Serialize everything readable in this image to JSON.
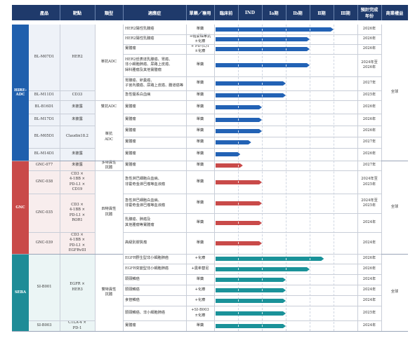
{
  "headers": {
    "product": "產品",
    "target": "靶點",
    "type": "類型",
    "indication": "適應症",
    "regimen": "單藥／聯用",
    "preclinical": "臨床前",
    "ind": "IND",
    "phase1a": "Ⅰa期",
    "phase1b": "Ⅰb期",
    "phase2": "Ⅱ期",
    "phase3": "Ⅲ期",
    "completion": "預計完成年份",
    "rights": "商業權益"
  },
  "groups": [
    {
      "label": "HIRE-ADC",
      "color": "#1f5fad"
    },
    {
      "label": "GNC",
      "color": "#c94a49"
    },
    {
      "label": "SEBA",
      "color": "#1e8c97"
    }
  ],
  "colors": {
    "blue": "#2262b5",
    "red": "#c94a49",
    "teal": "#1a9299",
    "header": "#1f3a6b"
  },
  "products": [
    "BL-M07D1",
    "BL-M11D1",
    "BL-B16D1",
    "BL-M17D1",
    "BL-M05D1",
    "BL-M14D1",
    "GNC-077",
    "GNC-038",
    "GNC-035",
    "GNC-039",
    "SI-B001",
    "SI-B003"
  ],
  "targets": [
    "HER2",
    "CD33",
    "未披露",
    "未披露",
    "Claudin18.2",
    "未披露",
    "未披露",
    "CD3 ×\n4-1BB ×\nPD-L1 ×\nCD19",
    "CD3 ×\n4-1BB ×\nPD-L1 ×\nROR1",
    "CD3 ×\n4-1BB ×\nPD-L1 ×\nEGFRvIII",
    "EGFR ×\nHER3",
    "CTLA-4 ×\nPD-1"
  ],
  "types": [
    "單抗ADC",
    "雙抗ADC",
    "單抗\nADC",
    "多特異性\n抗體",
    "四特異性\n抗體",
    "雙特異性\n抗體"
  ],
  "rights": [
    "全球",
    "全球",
    "全球"
  ],
  "rows": [
    {
      "indication": "HER2陽性乳腺癌",
      "regimen": "單藥",
      "year": "2026年",
      "color": "blue",
      "stage": 5.0
    },
    {
      "indication": "HER2陽性乳腺癌",
      "regimen": "+帕妥珠單抗\n±化療",
      "year": "2026年",
      "color": "blue",
      "stage": 4.0
    },
    {
      "indication": "實體瘤",
      "regimen": "+ PD-(L)1\n±化療",
      "year": "2026年",
      "color": "blue",
      "stage": 4.0
    },
    {
      "indication": "HER2低表達乳腺癌、胃癌、\n非小細胞肺癌、尿路上皮癌、\n婦科腫瘤及其他實體瘤",
      "regimen": "單藥",
      "year": "2024年至\n2026年",
      "color": "blue",
      "stage": 4.0
    },
    {
      "indication": "胃腺癌、卵巢癌、\n子宮內膜癌、尿路上皮癌、膽道癌等",
      "regimen": "單藥",
      "year": "2027年",
      "color": "blue",
      "stage": 3.0
    },
    {
      "indication": "急性髓系白血病",
      "regimen": "單藥",
      "year": "2025年",
      "color": "blue",
      "stage": 3.0
    },
    {
      "indication": "實體瘤",
      "regimen": "單藥",
      "year": "2026年",
      "color": "blue",
      "stage": 2.0
    },
    {
      "indication": "實體瘤",
      "regimen": "單藥",
      "year": "2026年",
      "color": "blue",
      "stage": 2.0
    },
    {
      "indication": "實體瘤",
      "regimen": "單藥",
      "year": "2026年",
      "color": "blue",
      "stage": 2.0
    },
    {
      "indication": "實體瘤",
      "regimen": "單藥",
      "year": "2027年",
      "color": "blue",
      "stage": 1.55
    },
    {
      "indication": "實體瘤",
      "regimen": "單藥",
      "year": "2026年",
      "color": "blue",
      "stage": 1.1
    },
    {
      "indication": "實體瘤",
      "regimen": "單藥",
      "year": "2027年",
      "color": "red",
      "stage": 1.2
    },
    {
      "indication": "急性淋巴細胞白血病、\n非霍奇金淋巴瘤等血液瘤",
      "regimen": "單藥",
      "year": "2024年至\n2025年",
      "color": "red",
      "stage": 2.0
    },
    {
      "indication": "急性淋巴細胞白血病、\n非霍奇金淋巴瘤等血液瘤",
      "regimen": "單藥",
      "year": "2024年至\n2025年",
      "color": "red",
      "stage": 2.0
    },
    {
      "indication": "乳腺癌、肺癌及\n其他腫瘤等實體瘤",
      "regimen": "單藥",
      "year": "2024年",
      "color": "red",
      "stage": 2.0
    },
    {
      "indication": "高級別膠質瘤",
      "regimen": "單藥",
      "year": "2024年",
      "color": "red",
      "stage": 2.0
    },
    {
      "indication": "EGFR野生型非小細胞肺癌",
      "regimen": "+化療",
      "year": "2026年",
      "color": "teal",
      "stage": 4.6
    },
    {
      "indication": "EGFR突變型非小細胞肺癌",
      "regimen": "+奧希替尼",
      "year": "2026年",
      "color": "teal",
      "stage": 4.0
    },
    {
      "indication": "頭頸鱗癌",
      "regimen": "單藥",
      "year": "2024年",
      "color": "teal",
      "stage": 3.0
    },
    {
      "indication": "頭頸鱗癌",
      "regimen": "+化療",
      "year": "2024年",
      "color": "teal",
      "stage": 3.0
    },
    {
      "indication": "食管鱗癌",
      "regimen": "+化療",
      "year": "2024年",
      "color": "teal",
      "stage": 3.0
    },
    {
      "indication": "頭頸鱗癌、非小細胞肺癌",
      "regimen": "+SI-B003\n±化療",
      "year": "2025年",
      "color": "teal",
      "stage": 3.0
    },
    {
      "indication": "實體瘤",
      "regimen": "單藥",
      "year": "2024年",
      "color": "teal",
      "stage": 3.0
    }
  ]
}
